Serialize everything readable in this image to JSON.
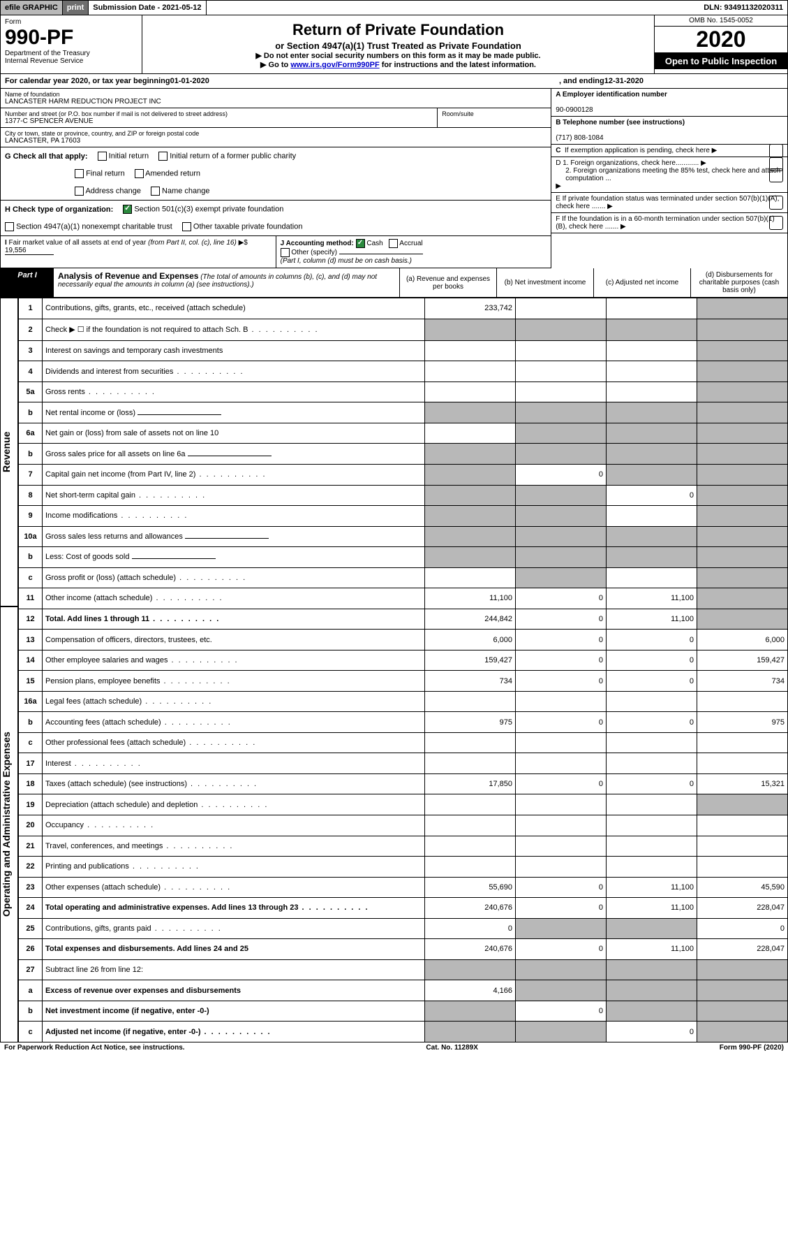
{
  "top_bar": {
    "efile": "efile GRAPHIC",
    "print": "print",
    "submission_date": "Submission Date - 2021-05-12",
    "dln": "DLN: 93491132020311"
  },
  "header": {
    "form_label": "Form",
    "form_number": "990-PF",
    "dept": "Department of the Treasury",
    "irs": "Internal Revenue Service",
    "title": "Return of Private Foundation",
    "subtitle": "or Section 4947(a)(1) Trust Treated as Private Foundation",
    "note1": "▶ Do not enter social security numbers on this form as it may be made public.",
    "note2_prefix": "▶ Go to ",
    "note2_link": "www.irs.gov/Form990PF",
    "note2_suffix": " for instructions and the latest information.",
    "omb": "OMB No. 1545-0052",
    "year": "2020",
    "open_public": "Open to Public Inspection"
  },
  "cal_year": {
    "prefix": "For calendar year 2020, or tax year beginning ",
    "begin": "01-01-2020",
    "mid": ", and ending ",
    "end": "12-31-2020"
  },
  "entity": {
    "name_label": "Name of foundation",
    "name": "LANCASTER HARM REDUCTION PROJECT INC",
    "addr_label": "Number and street (or P.O. box number if mail is not delivered to street address)",
    "addr": "1377-C SPENCER AVENUE",
    "room_label": "Room/suite",
    "city_label": "City or town, state or province, country, and ZIP or foreign postal code",
    "city": "LANCASTER, PA  17603",
    "ein_label": "A Employer identification number",
    "ein": "90-0900128",
    "phone_label": "B  Telephone number (see instructions)",
    "phone": "(717) 808-1084",
    "c_label": "C  If exemption application is pending, check here",
    "d1_label": "D 1. Foreign organizations, check here............",
    "d2_label": "2. Foreign organizations meeting the 85% test, check here and attach computation ...",
    "e_label": "E  If private foundation status was terminated under section 507(b)(1)(A), check here .......",
    "f_label": "F  If the foundation is in a 60-month termination under section 507(b)(1)(B), check here ......."
  },
  "boxes": {
    "g_label": "G Check all that apply:",
    "g_opts": [
      "Initial return",
      "Initial return of a former public charity",
      "Final return",
      "Amended return",
      "Address change",
      "Name change"
    ],
    "h_label": "H Check type of organization:",
    "h_501c3": "Section 501(c)(3) exempt private foundation",
    "h_4947": "Section 4947(a)(1) nonexempt charitable trust",
    "h_other_tax": "Other taxable private foundation",
    "i_label": "I Fair market value of all assets at end of year (from Part II, col. (c), line 16) ▶$",
    "i_value": "19,556",
    "j_label": "J Accounting method:",
    "j_cash": "Cash",
    "j_accrual": "Accrual",
    "j_other": "Other (specify)",
    "j_note": "(Part I, column (d) must be on cash basis.)"
  },
  "part1": {
    "label": "Part I",
    "title": "Analysis of Revenue and Expenses",
    "note": "(The total of amounts in columns (b), (c), and (d) may not necessarily equal the amounts in column (a) (see instructions).)",
    "col_a": "(a)   Revenue and expenses per books",
    "col_b": "(b)   Net investment income",
    "col_c": "(c)   Adjusted net income",
    "col_d": "(d)   Disbursements for charitable purposes (cash basis only)"
  },
  "sections": {
    "revenue": "Revenue",
    "expenses": "Operating and Administrative Expenses"
  },
  "rows": [
    {
      "n": "1",
      "desc": "Contributions, gifts, grants, etc., received (attach schedule)",
      "a": "233,742",
      "b": "",
      "c": "",
      "d": "",
      "shade": [
        "d"
      ]
    },
    {
      "n": "2",
      "desc": "Check ▶ ☐ if the foundation is not required to attach Sch. B",
      "a": "",
      "b": "",
      "c": "",
      "d": "",
      "shade": [
        "a",
        "b",
        "c",
        "d"
      ],
      "dots": true
    },
    {
      "n": "3",
      "desc": "Interest on savings and temporary cash investments",
      "a": "",
      "b": "",
      "c": "",
      "d": "",
      "shade": [
        "d"
      ]
    },
    {
      "n": "4",
      "desc": "Dividends and interest from securities",
      "a": "",
      "b": "",
      "c": "",
      "d": "",
      "shade": [
        "d"
      ],
      "dots": true
    },
    {
      "n": "5a",
      "desc": "Gross rents",
      "a": "",
      "b": "",
      "c": "",
      "d": "",
      "shade": [
        "d"
      ],
      "dots": true
    },
    {
      "n": "b",
      "desc": "Net rental income or (loss)",
      "a": "",
      "b": "",
      "c": "",
      "d": "",
      "shade": [
        "a",
        "b",
        "c",
        "d"
      ],
      "underline": true
    },
    {
      "n": "6a",
      "desc": "Net gain or (loss) from sale of assets not on line 10",
      "a": "",
      "b": "",
      "c": "",
      "d": "",
      "shade": [
        "b",
        "c",
        "d"
      ]
    },
    {
      "n": "b",
      "desc": "Gross sales price for all assets on line 6a",
      "a": "",
      "b": "",
      "c": "",
      "d": "",
      "shade": [
        "a",
        "b",
        "c",
        "d"
      ],
      "underline": true
    },
    {
      "n": "7",
      "desc": "Capital gain net income (from Part IV, line 2)",
      "a": "",
      "b": "0",
      "c": "",
      "d": "",
      "shade": [
        "a",
        "c",
        "d"
      ],
      "dots": true
    },
    {
      "n": "8",
      "desc": "Net short-term capital gain",
      "a": "",
      "b": "",
      "c": "0",
      "d": "",
      "shade": [
        "a",
        "b",
        "d"
      ],
      "dots": true
    },
    {
      "n": "9",
      "desc": "Income modifications",
      "a": "",
      "b": "",
      "c": "",
      "d": "",
      "shade": [
        "a",
        "b",
        "d"
      ],
      "dots": true
    },
    {
      "n": "10a",
      "desc": "Gross sales less returns and allowances",
      "a": "",
      "b": "",
      "c": "",
      "d": "",
      "shade": [
        "a",
        "b",
        "c",
        "d"
      ],
      "underline": true
    },
    {
      "n": "b",
      "desc": "Less: Cost of goods sold",
      "a": "",
      "b": "",
      "c": "",
      "d": "",
      "shade": [
        "a",
        "b",
        "c",
        "d"
      ],
      "dots": true,
      "underline": true
    },
    {
      "n": "c",
      "desc": "Gross profit or (loss) (attach schedule)",
      "a": "",
      "b": "",
      "c": "",
      "d": "",
      "shade": [
        "b",
        "d"
      ],
      "dots": true
    },
    {
      "n": "11",
      "desc": "Other income (attach schedule)",
      "a": "11,100",
      "b": "0",
      "c": "11,100",
      "d": "",
      "shade": [
        "d"
      ],
      "dots": true
    },
    {
      "n": "12",
      "desc": "Total. Add lines 1 through 11",
      "a": "244,842",
      "b": "0",
      "c": "11,100",
      "d": "",
      "shade": [
        "d"
      ],
      "dots": true,
      "bold": true
    },
    {
      "n": "13",
      "desc": "Compensation of officers, directors, trustees, etc.",
      "a": "6,000",
      "b": "0",
      "c": "0",
      "d": "6,000"
    },
    {
      "n": "14",
      "desc": "Other employee salaries and wages",
      "a": "159,427",
      "b": "0",
      "c": "0",
      "d": "159,427",
      "dots": true
    },
    {
      "n": "15",
      "desc": "Pension plans, employee benefits",
      "a": "734",
      "b": "0",
      "c": "0",
      "d": "734",
      "dots": true
    },
    {
      "n": "16a",
      "desc": "Legal fees (attach schedule)",
      "a": "",
      "b": "",
      "c": "",
      "d": "",
      "dots": true
    },
    {
      "n": "b",
      "desc": "Accounting fees (attach schedule)",
      "a": "975",
      "b": "0",
      "c": "0",
      "d": "975",
      "dots": true
    },
    {
      "n": "c",
      "desc": "Other professional fees (attach schedule)",
      "a": "",
      "b": "",
      "c": "",
      "d": "",
      "dots": true
    },
    {
      "n": "17",
      "desc": "Interest",
      "a": "",
      "b": "",
      "c": "",
      "d": "",
      "dots": true
    },
    {
      "n": "18",
      "desc": "Taxes (attach schedule) (see instructions)",
      "a": "17,850",
      "b": "0",
      "c": "0",
      "d": "15,321",
      "dots": true
    },
    {
      "n": "19",
      "desc": "Depreciation (attach schedule) and depletion",
      "a": "",
      "b": "",
      "c": "",
      "d": "",
      "shade": [
        "d"
      ],
      "dots": true
    },
    {
      "n": "20",
      "desc": "Occupancy",
      "a": "",
      "b": "",
      "c": "",
      "d": "",
      "dots": true
    },
    {
      "n": "21",
      "desc": "Travel, conferences, and meetings",
      "a": "",
      "b": "",
      "c": "",
      "d": "",
      "dots": true
    },
    {
      "n": "22",
      "desc": "Printing and publications",
      "a": "",
      "b": "",
      "c": "",
      "d": "",
      "dots": true
    },
    {
      "n": "23",
      "desc": "Other expenses (attach schedule)",
      "a": "55,690",
      "b": "0",
      "c": "11,100",
      "d": "45,590",
      "dots": true
    },
    {
      "n": "24",
      "desc": "Total operating and administrative expenses. Add lines 13 through 23",
      "a": "240,676",
      "b": "0",
      "c": "11,100",
      "d": "228,047",
      "dots": true,
      "bold": true
    },
    {
      "n": "25",
      "desc": "Contributions, gifts, grants paid",
      "a": "0",
      "b": "",
      "c": "",
      "d": "0",
      "shade": [
        "b",
        "c"
      ],
      "dots": true
    },
    {
      "n": "26",
      "desc": "Total expenses and disbursements. Add lines 24 and 25",
      "a": "240,676",
      "b": "0",
      "c": "11,100",
      "d": "228,047",
      "bold": true
    },
    {
      "n": "27",
      "desc": "Subtract line 26 from line 12:",
      "a": "",
      "b": "",
      "c": "",
      "d": "",
      "shade": [
        "a",
        "b",
        "c",
        "d"
      ]
    },
    {
      "n": "a",
      "desc": "Excess of revenue over expenses and disbursements",
      "a": "4,166",
      "b": "",
      "c": "",
      "d": "",
      "shade": [
        "b",
        "c",
        "d"
      ],
      "bold": true
    },
    {
      "n": "b",
      "desc": "Net investment income (if negative, enter -0-)",
      "a": "",
      "b": "0",
      "c": "",
      "d": "",
      "shade": [
        "a",
        "c",
        "d"
      ],
      "bold": true
    },
    {
      "n": "c",
      "desc": "Adjusted net income (if negative, enter -0-)",
      "a": "",
      "b": "",
      "c": "0",
      "d": "",
      "shade": [
        "a",
        "b",
        "d"
      ],
      "bold": true,
      "dots": true
    }
  ],
  "footer": {
    "left": "For Paperwork Reduction Act Notice, see instructions.",
    "mid": "Cat. No. 11289X",
    "right": "Form 990-PF (2020)"
  }
}
